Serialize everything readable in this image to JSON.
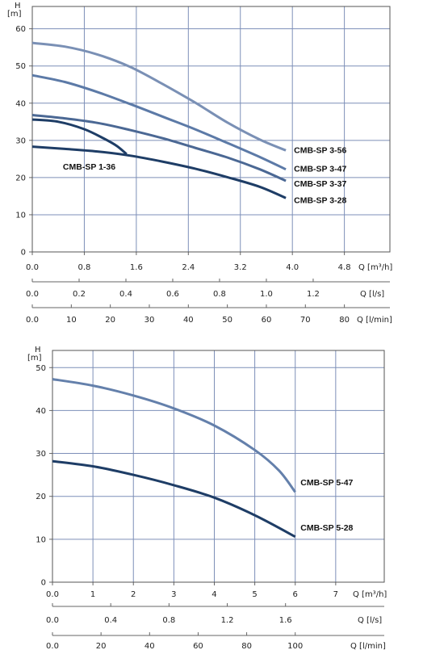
{
  "chart_data": [
    {
      "type": "line",
      "y_symbol": "H",
      "y_unit": "[m]",
      "ylim": [
        0,
        66
      ],
      "yticks": [
        "0",
        "10",
        "20",
        "30",
        "40",
        "50",
        "60"
      ],
      "xlim": [
        0,
        5.5
      ],
      "grid": true,
      "x_axes": [
        {
          "unit": "Q [m³/h]",
          "ticks": [
            [
              "0.0",
              0
            ],
            [
              "0.8",
              0.8
            ],
            [
              "1.6",
              1.6
            ],
            [
              "2.4",
              2.4
            ],
            [
              "3.2",
              3.2
            ],
            [
              "4.0",
              4.0
            ],
            [
              "4.8",
              4.8
            ]
          ]
        },
        {
          "unit": "Q [l/s]",
          "ticks": [
            [
              "0.0",
              0
            ],
            [
              "0.2",
              0.72
            ],
            [
              "0.4",
              1.44
            ],
            [
              "0.6",
              2.16
            ],
            [
              "0.8",
              2.88
            ],
            [
              "1.0",
              3.6
            ],
            [
              "1.2",
              4.32
            ]
          ]
        },
        {
          "unit": "Q [l/min]",
          "ticks": [
            [
              "0.0",
              0
            ],
            [
              "10",
              0.6
            ],
            [
              "20",
              1.2
            ],
            [
              "30",
              1.8
            ],
            [
              "40",
              2.4
            ],
            [
              "50",
              3.0
            ],
            [
              "60",
              3.6
            ],
            [
              "70",
              4.2
            ],
            [
              "80",
              4.8
            ]
          ]
        }
      ],
      "series": [
        {
          "name": "CMB-SP 3-56",
          "color": "#7a90b5",
          "x": [
            0,
            0.5,
            1.0,
            1.5,
            2.0,
            2.5,
            3.0,
            3.5,
            3.9
          ],
          "y": [
            56.2,
            55.2,
            53.1,
            49.8,
            45.2,
            40.2,
            34.8,
            30.2,
            27.3
          ],
          "label_at": [
            3.95,
            27.5
          ]
        },
        {
          "name": "CMB-SP 3-47",
          "color": "#5c7aa7",
          "x": [
            0,
            0.5,
            1.0,
            1.5,
            2.0,
            2.5,
            3.0,
            3.5,
            3.9
          ],
          "y": [
            47.5,
            45.7,
            43.0,
            39.8,
            36.4,
            33.0,
            29.3,
            25.5,
            22.2
          ],
          "label_at": [
            3.95,
            22.5
          ]
        },
        {
          "name": "CMB-SP 3-37",
          "color": "#4b6894",
          "x": [
            0,
            0.5,
            1.0,
            1.5,
            2.0,
            2.5,
            3.0,
            3.5,
            3.9
          ],
          "y": [
            36.8,
            35.9,
            34.7,
            32.8,
            30.6,
            28.0,
            25.4,
            22.2,
            19.1
          ],
          "label_at": [
            3.95,
            18.5
          ]
        },
        {
          "name": "CMB-SP 3-28",
          "color": "#1e3d66",
          "x": [
            0,
            0.5,
            1.0,
            1.5,
            2.0,
            2.5,
            3.0,
            3.5,
            3.9
          ],
          "y": [
            28.3,
            27.7,
            27.0,
            25.9,
            24.3,
            22.4,
            20.1,
            17.5,
            14.5
          ],
          "label_at": [
            3.95,
            14.0
          ]
        },
        {
          "name": "CMB-SP 1-36",
          "color": "#1e3d66",
          "x": [
            0,
            0.4,
            0.8,
            1.1,
            1.3,
            1.45
          ],
          "y": [
            35.6,
            35.0,
            33.0,
            30.5,
            28.5,
            26.3
          ],
          "label_at": [
            1.28,
            23.0
          ]
        }
      ]
    },
    {
      "type": "line",
      "y_symbol": "H",
      "y_unit": "[m]",
      "ylim": [
        0,
        54
      ],
      "yticks": [
        "0",
        "10",
        "20",
        "30",
        "40",
        "50"
      ],
      "xlim": [
        0,
        8.2
      ],
      "grid": true,
      "x_axes": [
        {
          "unit": "Q [m³/h]",
          "ticks": [
            [
              "0.0",
              0
            ],
            [
              "1",
              1
            ],
            [
              "2",
              2
            ],
            [
              "3",
              3
            ],
            [
              "4",
              4
            ],
            [
              "5",
              5
            ],
            [
              "6",
              6
            ],
            [
              "7",
              7
            ]
          ]
        },
        {
          "unit": "Q [l/s]",
          "ticks": [
            [
              "0.0",
              0
            ],
            [
              "0.4",
              1.44
            ],
            [
              "0.8",
              2.88
            ],
            [
              "1.2",
              4.32
            ],
            [
              "1.6",
              5.76
            ]
          ]
        },
        {
          "unit": "Q [l/min]",
          "ticks": [
            [
              "0.0",
              0
            ],
            [
              "20",
              1.2
            ],
            [
              "40",
              2.4
            ],
            [
              "60",
              3.6
            ],
            [
              "80",
              4.8
            ],
            [
              "100",
              6.0
            ]
          ]
        }
      ],
      "series": [
        {
          "name": "CMB-SP 5-47",
          "color": "#6480ab",
          "x": [
            0,
            1,
            2,
            3,
            4,
            5,
            5.6,
            6.0
          ],
          "y": [
            47.3,
            45.8,
            43.5,
            40.5,
            36.5,
            30.8,
            26.0,
            21.0
          ],
          "label_at": [
            6.05,
            23.3
          ]
        },
        {
          "name": "CMB-SP 5-28",
          "color": "#1e3d66",
          "x": [
            0,
            1,
            2,
            3,
            4,
            5,
            6.0
          ],
          "y": [
            28.2,
            27.0,
            25.0,
            22.6,
            19.7,
            15.6,
            10.6
          ],
          "label_at": [
            6.05,
            12.8
          ]
        }
      ]
    }
  ]
}
